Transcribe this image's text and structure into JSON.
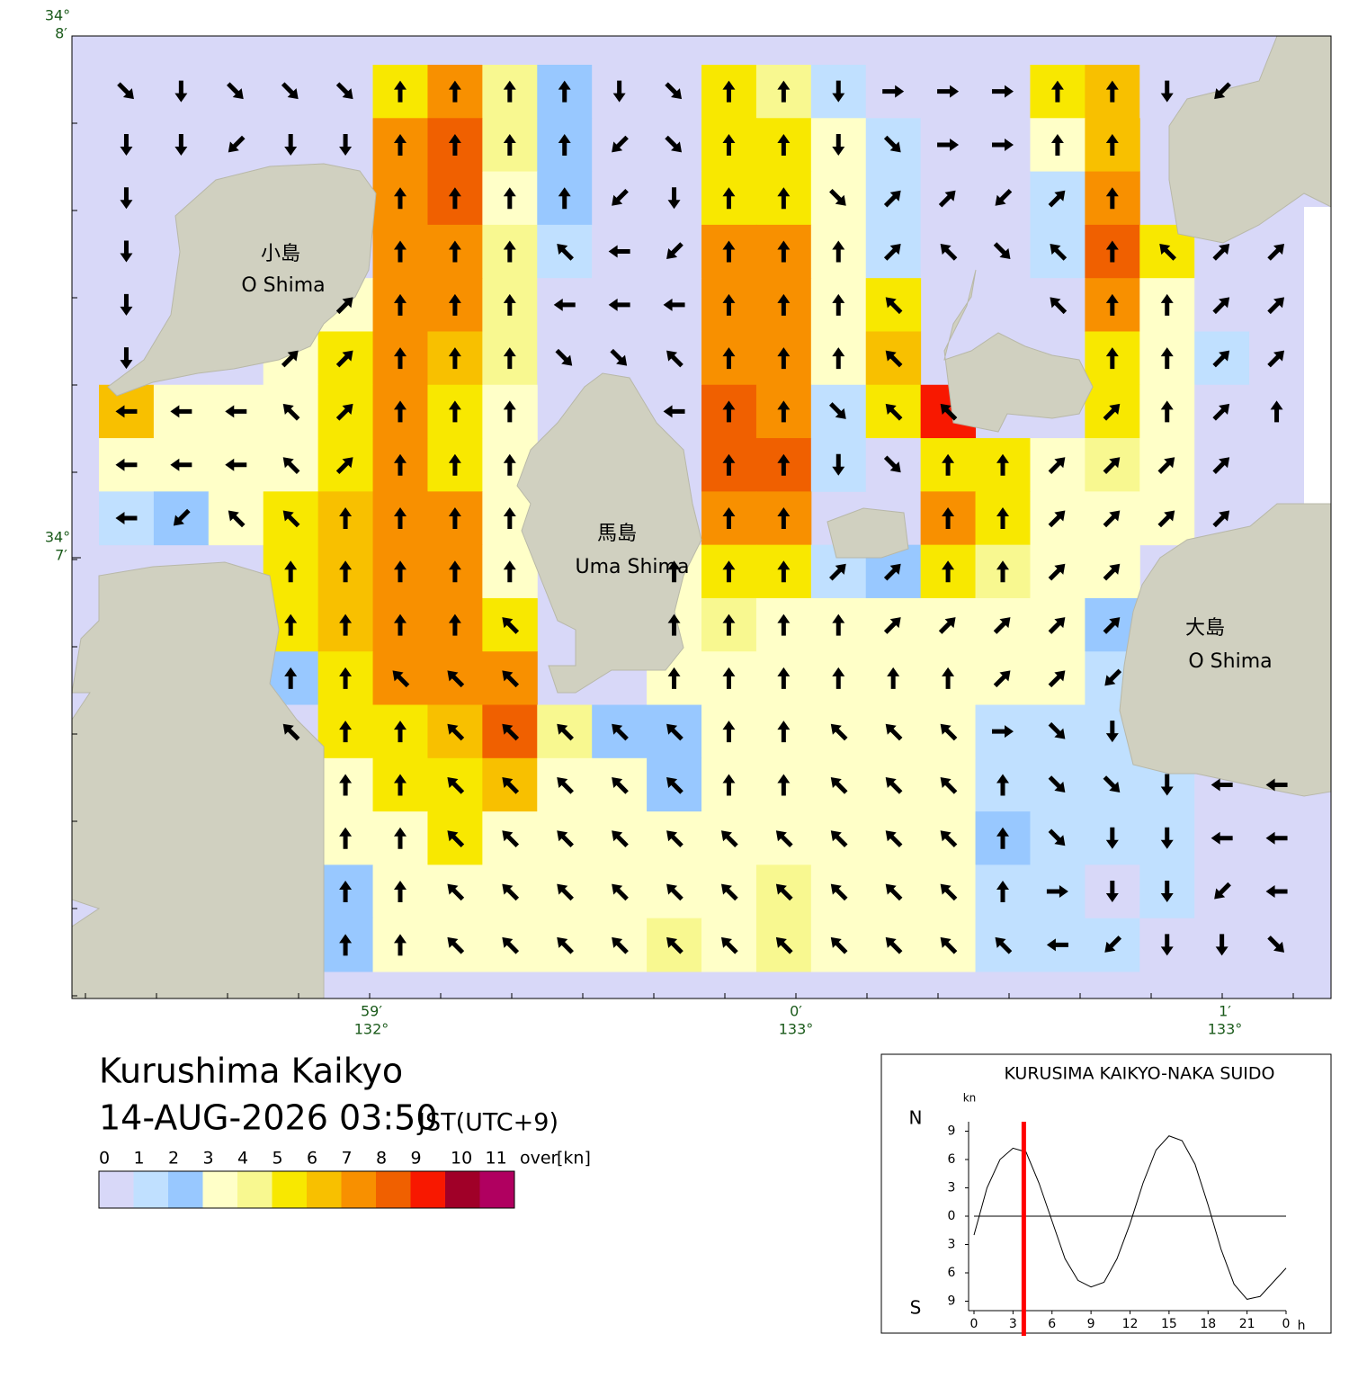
{
  "header": {
    "title": "Kurushima Kaikyo",
    "datetime": "14-AUG-2026 03:50",
    "timezone": "JST(UTC+9)"
  },
  "legend": {
    "labels": [
      "0",
      "1",
      "2",
      "3",
      "4",
      "5",
      "6",
      "7",
      "8",
      "9",
      "10",
      "11",
      "over"
    ],
    "unit": "[kn]",
    "colors": [
      "#d8d8f8",
      "#c0e0ff",
      "#98c8ff",
      "#ffffc8",
      "#f8f890",
      "#f8e800",
      "#f8c000",
      "#f89000",
      "#f06000",
      "#f81800",
      "#a00028",
      "#b00060"
    ]
  },
  "map": {
    "lat_ticks": [
      {
        "deg": "34°",
        "min": "8′"
      },
      {
        "deg": "34°",
        "min": "7′"
      }
    ],
    "lon_ticks": [
      {
        "min": "59′",
        "deg": "132°"
      },
      {
        "min": "0′",
        "deg": "133°"
      },
      {
        "min": "1′",
        "deg": "133°"
      }
    ],
    "place_labels": [
      {
        "jp": "小島",
        "en": "O Shima"
      },
      {
        "jp": "馬島",
        "en": "Uma Shima"
      },
      {
        "jp": "大島",
        "en": "O Shima"
      }
    ],
    "speed_class": [
      [
        0,
        0,
        0,
        0,
        0,
        5,
        7,
        4,
        2,
        0,
        0,
        5,
        4,
        1,
        0,
        0,
        0,
        5,
        6,
        0,
        0,
        null
      ],
      [
        0,
        0,
        0,
        0,
        0,
        7,
        8,
        4,
        2,
        0,
        0,
        5,
        5,
        3,
        1,
        0,
        0,
        3,
        6,
        null,
        null,
        null
      ],
      [
        0,
        null,
        null,
        null,
        null,
        7,
        8,
        3,
        2,
        0,
        0,
        5,
        5,
        3,
        1,
        0,
        0,
        1,
        7,
        null,
        null,
        null
      ],
      [
        0,
        null,
        null,
        null,
        null,
        7,
        7,
        4,
        1,
        0,
        0,
        7,
        7,
        3,
        1,
        0,
        0,
        1,
        8,
        5,
        0,
        0
      ],
      [
        0,
        null,
        null,
        null,
        3,
        7,
        7,
        4,
        0,
        0,
        0,
        7,
        7,
        3,
        5,
        null,
        null,
        0,
        7,
        3,
        0,
        0
      ],
      [
        0,
        null,
        null,
        3,
        5,
        7,
        6,
        4,
        0,
        0,
        0,
        7,
        7,
        3,
        6,
        null,
        null,
        null,
        5,
        3,
        1,
        0
      ],
      [
        6,
        3,
        3,
        3,
        5,
        7,
        5,
        3,
        null,
        null,
        0,
        8,
        7,
        1,
        5,
        9,
        null,
        null,
        5,
        3,
        0,
        0
      ],
      [
        3,
        3,
        3,
        3,
        5,
        7,
        5,
        3,
        null,
        null,
        null,
        8,
        8,
        1,
        0,
        5,
        5,
        3,
        4,
        3,
        0,
        null
      ],
      [
        1,
        2,
        3,
        5,
        6,
        7,
        7,
        3,
        null,
        null,
        null,
        7,
        7,
        null,
        null,
        7,
        5,
        3,
        3,
        3,
        0,
        null
      ],
      [
        null,
        null,
        null,
        5,
        6,
        7,
        7,
        3,
        null,
        null,
        3,
        5,
        5,
        1,
        2,
        5,
        4,
        3,
        3,
        null,
        null,
        null
      ],
      [
        null,
        null,
        null,
        5,
        6,
        7,
        7,
        5,
        null,
        null,
        3,
        4,
        3,
        3,
        3,
        3,
        3,
        3,
        2,
        null,
        null,
        null
      ],
      [
        null,
        null,
        null,
        2,
        5,
        7,
        7,
        7,
        null,
        null,
        3,
        3,
        3,
        3,
        3,
        3,
        3,
        3,
        1,
        null,
        null,
        null
      ],
      [
        null,
        null,
        null,
        0,
        5,
        5,
        6,
        8,
        4,
        2,
        2,
        3,
        3,
        3,
        3,
        3,
        1,
        1,
        1,
        null,
        null,
        null
      ],
      [
        null,
        null,
        null,
        null,
        3,
        5,
        5,
        6,
        3,
        3,
        2,
        3,
        3,
        3,
        3,
        3,
        1,
        1,
        1,
        1,
        0,
        0
      ],
      [
        null,
        null,
        null,
        null,
        3,
        3,
        5,
        3,
        3,
        3,
        3,
        3,
        3,
        3,
        3,
        3,
        2,
        1,
        1,
        1,
        0,
        0
      ],
      [
        null,
        null,
        null,
        null,
        2,
        3,
        3,
        3,
        3,
        3,
        3,
        3,
        4,
        3,
        3,
        3,
        1,
        1,
        0,
        1,
        0,
        0
      ],
      [
        null,
        null,
        null,
        null,
        2,
        3,
        3,
        3,
        3,
        3,
        4,
        3,
        4,
        3,
        3,
        3,
        1,
        1,
        1,
        0,
        0,
        0
      ]
    ],
    "direction_deg": [
      [
        135,
        180,
        135,
        135,
        135,
        0,
        0,
        0,
        0,
        180,
        135,
        0,
        0,
        180,
        90,
        90,
        90,
        0,
        0,
        180,
        225,
        null
      ],
      [
        180,
        180,
        225,
        180,
        180,
        0,
        0,
        0,
        0,
        225,
        135,
        0,
        0,
        180,
        135,
        90,
        90,
        0,
        0,
        null,
        null,
        null
      ],
      [
        180,
        null,
        null,
        null,
        null,
        0,
        0,
        0,
        0,
        225,
        180,
        0,
        0,
        135,
        45,
        45,
        225,
        45,
        0,
        null,
        null,
        null
      ],
      [
        180,
        null,
        null,
        null,
        null,
        0,
        0,
        0,
        315,
        270,
        225,
        0,
        0,
        0,
        45,
        315,
        135,
        315,
        0,
        315,
        45,
        45
      ],
      [
        180,
        null,
        null,
        null,
        45,
        0,
        0,
        0,
        270,
        270,
        270,
        0,
        0,
        0,
        315,
        null,
        null,
        315,
        0,
        0,
        45,
        45
      ],
      [
        180,
        null,
        null,
        45,
        45,
        0,
        0,
        0,
        135,
        135,
        315,
        0,
        0,
        0,
        315,
        null,
        null,
        null,
        0,
        0,
        45,
        45
      ],
      [
        270,
        270,
        270,
        315,
        45,
        0,
        0,
        0,
        null,
        null,
        270,
        0,
        0,
        135,
        315,
        315,
        null,
        null,
        45,
        0,
        45,
        0
      ],
      [
        270,
        270,
        270,
        315,
        45,
        0,
        0,
        0,
        null,
        null,
        null,
        0,
        0,
        180,
        135,
        0,
        0,
        45,
        45,
        45,
        45,
        null
      ],
      [
        270,
        225,
        315,
        315,
        0,
        0,
        0,
        0,
        null,
        null,
        null,
        0,
        0,
        null,
        null,
        0,
        0,
        45,
        45,
        45,
        45,
        null
      ],
      [
        null,
        null,
        null,
        0,
        0,
        0,
        0,
        0,
        null,
        null,
        0,
        0,
        0,
        45,
        45,
        0,
        0,
        45,
        45,
        null,
        null,
        null
      ],
      [
        null,
        null,
        null,
        0,
        0,
        0,
        0,
        315,
        null,
        null,
        0,
        0,
        0,
        0,
        45,
        45,
        45,
        45,
        45,
        null,
        null,
        null
      ],
      [
        null,
        null,
        null,
        0,
        0,
        315,
        315,
        315,
        null,
        null,
        0,
        0,
        0,
        0,
        0,
        0,
        45,
        45,
        225,
        null,
        null,
        null
      ],
      [
        null,
        null,
        null,
        315,
        0,
        0,
        315,
        315,
        315,
        315,
        315,
        0,
        0,
        315,
        315,
        315,
        90,
        135,
        180,
        null,
        null,
        null
      ],
      [
        null,
        null,
        null,
        null,
        0,
        0,
        315,
        315,
        315,
        315,
        315,
        0,
        0,
        315,
        315,
        315,
        0,
        135,
        135,
        180,
        270,
        270
      ],
      [
        null,
        null,
        null,
        null,
        0,
        0,
        315,
        315,
        315,
        315,
        315,
        315,
        315,
        315,
        315,
        315,
        0,
        135,
        180,
        180,
        270,
        270
      ],
      [
        null,
        null,
        null,
        null,
        0,
        0,
        315,
        315,
        315,
        315,
        315,
        315,
        315,
        315,
        315,
        315,
        0,
        90,
        180,
        180,
        225,
        270
      ],
      [
        null,
        null,
        null,
        null,
        0,
        0,
        315,
        315,
        315,
        315,
        315,
        315,
        315,
        315,
        315,
        315,
        315,
        270,
        225,
        180,
        180,
        135
      ]
    ]
  },
  "chart_data": {
    "type": "line",
    "title": "KURUSIMA KAIKYO-NAKA SUIDO",
    "y_unit": "kn",
    "north_label": "N",
    "south_label": "S",
    "x_unit": "h",
    "x": [
      0,
      1,
      2,
      3,
      4,
      5,
      6,
      7,
      8,
      9,
      10,
      11,
      12,
      13,
      14,
      15,
      16,
      17,
      18,
      19,
      20,
      21,
      22,
      23,
      24
    ],
    "series": [
      {
        "color": "#000000",
        "values": [
          -2,
          3,
          6,
          7.2,
          6.8,
          3.5,
          -0.5,
          -4.5,
          -6.8,
          -7.5,
          -7,
          -4.5,
          -0.8,
          3.5,
          7,
          8.5,
          8,
          5.5,
          1.2,
          -3.5,
          -7.2,
          -8.8,
          -8.5,
          -7,
          -5.5
        ]
      }
    ],
    "current_time": 3.83,
    "current_color": "#ff0000",
    "xlim": [
      0,
      24
    ],
    "ylim": [
      -10,
      10
    ],
    "xticks": [
      0,
      3,
      6,
      9,
      12,
      15,
      18,
      21,
      {
        "value": 24,
        "label": "0"
      }
    ],
    "yticks": [
      9,
      6,
      3,
      0,
      {
        "value": -3,
        "label": "3"
      },
      {
        "value": -6,
        "label": "6"
      },
      {
        "value": -9,
        "label": "9"
      }
    ]
  }
}
